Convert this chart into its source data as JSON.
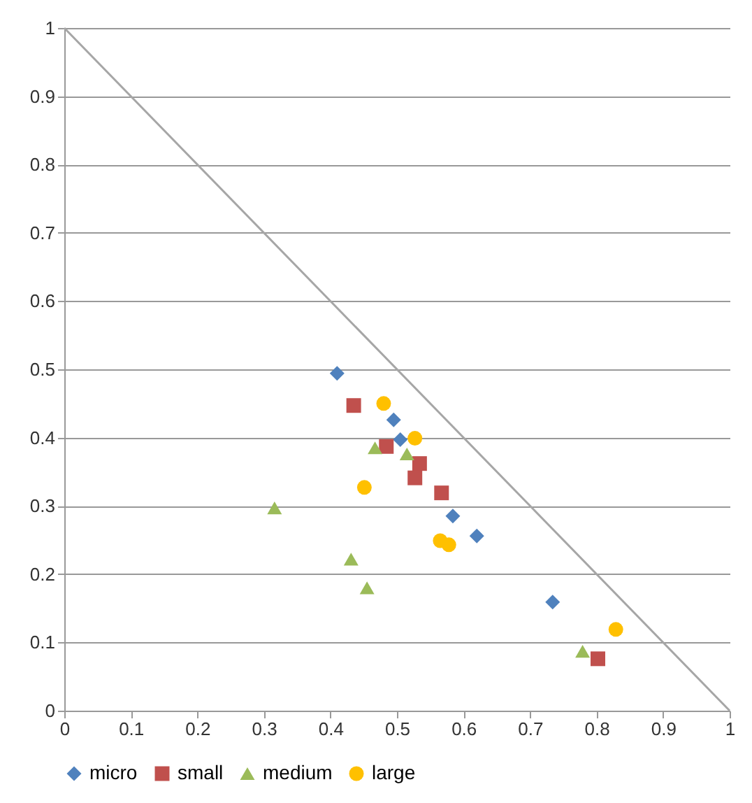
{
  "chart_data": {
    "type": "scatter",
    "xlim": [
      0,
      1
    ],
    "ylim": [
      0,
      1
    ],
    "xticks": [
      0,
      0.1,
      0.2,
      0.3,
      0.4,
      0.5,
      0.6,
      0.7,
      0.8,
      0.9,
      1
    ],
    "yticks": [
      0,
      0.1,
      0.2,
      0.3,
      0.4,
      0.5,
      0.6,
      0.7,
      0.8,
      0.9,
      1
    ],
    "grid": "y",
    "legend": "bottom",
    "series": [
      {
        "name": "micro",
        "color": "#4f81bd",
        "marker": "diamond",
        "x": [
          0.41,
          0.495,
          0.505,
          0.584,
          0.62,
          0.734
        ],
        "values": [
          0.494,
          0.426,
          0.397,
          0.285,
          0.256,
          0.159
        ]
      },
      {
        "name": "small",
        "color": "#c0504d",
        "marker": "square",
        "x": [
          0.435,
          0.484,
          0.534,
          0.527,
          0.567,
          0.802
        ],
        "values": [
          0.447,
          0.387,
          0.362,
          0.341,
          0.319,
          0.076
        ]
      },
      {
        "name": "medium",
        "color": "#9bbb59",
        "marker": "triangle",
        "x": [
          0.467,
          0.515,
          0.316,
          0.431,
          0.455,
          0.779
        ],
        "values": [
          0.385,
          0.376,
          0.297,
          0.222,
          0.18,
          0.087
        ]
      },
      {
        "name": "large",
        "color": "#ffc000",
        "marker": "circle",
        "x": [
          0.48,
          0.527,
          0.451,
          0.565,
          0.578,
          0.829
        ],
        "values": [
          0.45,
          0.399,
          0.327,
          0.249,
          0.243,
          0.119
        ]
      },
      {
        "type": "line",
        "color": "#a6a6a6",
        "x": [
          0,
          1
        ],
        "values": [
          1,
          0
        ]
      }
    ]
  }
}
